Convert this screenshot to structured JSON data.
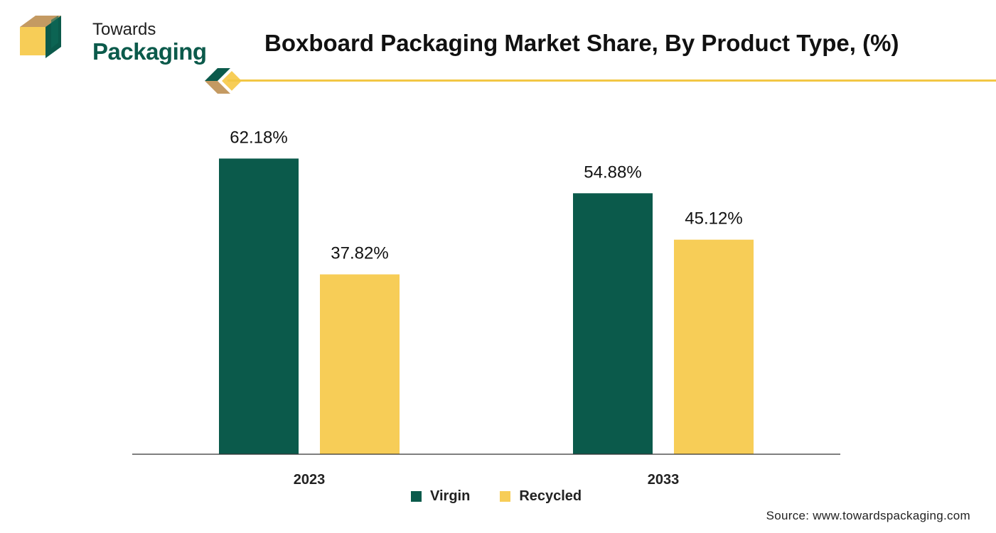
{
  "logo": {
    "line1": "Towards",
    "line2": "Packaging"
  },
  "title": "Boxboard Packaging Market Share, By Product Type, (%)",
  "source": "Source: www.towardspackaging.com",
  "colors": {
    "virgin": "#0b5a4b",
    "recycled": "#f7cd57",
    "accent": "#f2c744",
    "logo_brown": "#c49a62"
  },
  "chart_data": {
    "type": "bar",
    "categories": [
      "2023",
      "2033"
    ],
    "series": [
      {
        "name": "Virgin",
        "values": [
          62.18,
          54.88
        ],
        "labels": [
          "62.18%",
          "54.88%"
        ],
        "color": "#0b5a4b"
      },
      {
        "name": "Recycled",
        "values": [
          37.82,
          45.12
        ],
        "labels": [
          "37.82%",
          "45.12%"
        ],
        "color": "#f7cd57"
      }
    ],
    "ylim": [
      0,
      100
    ],
    "grid": false,
    "legend_position": "bottom-center"
  }
}
